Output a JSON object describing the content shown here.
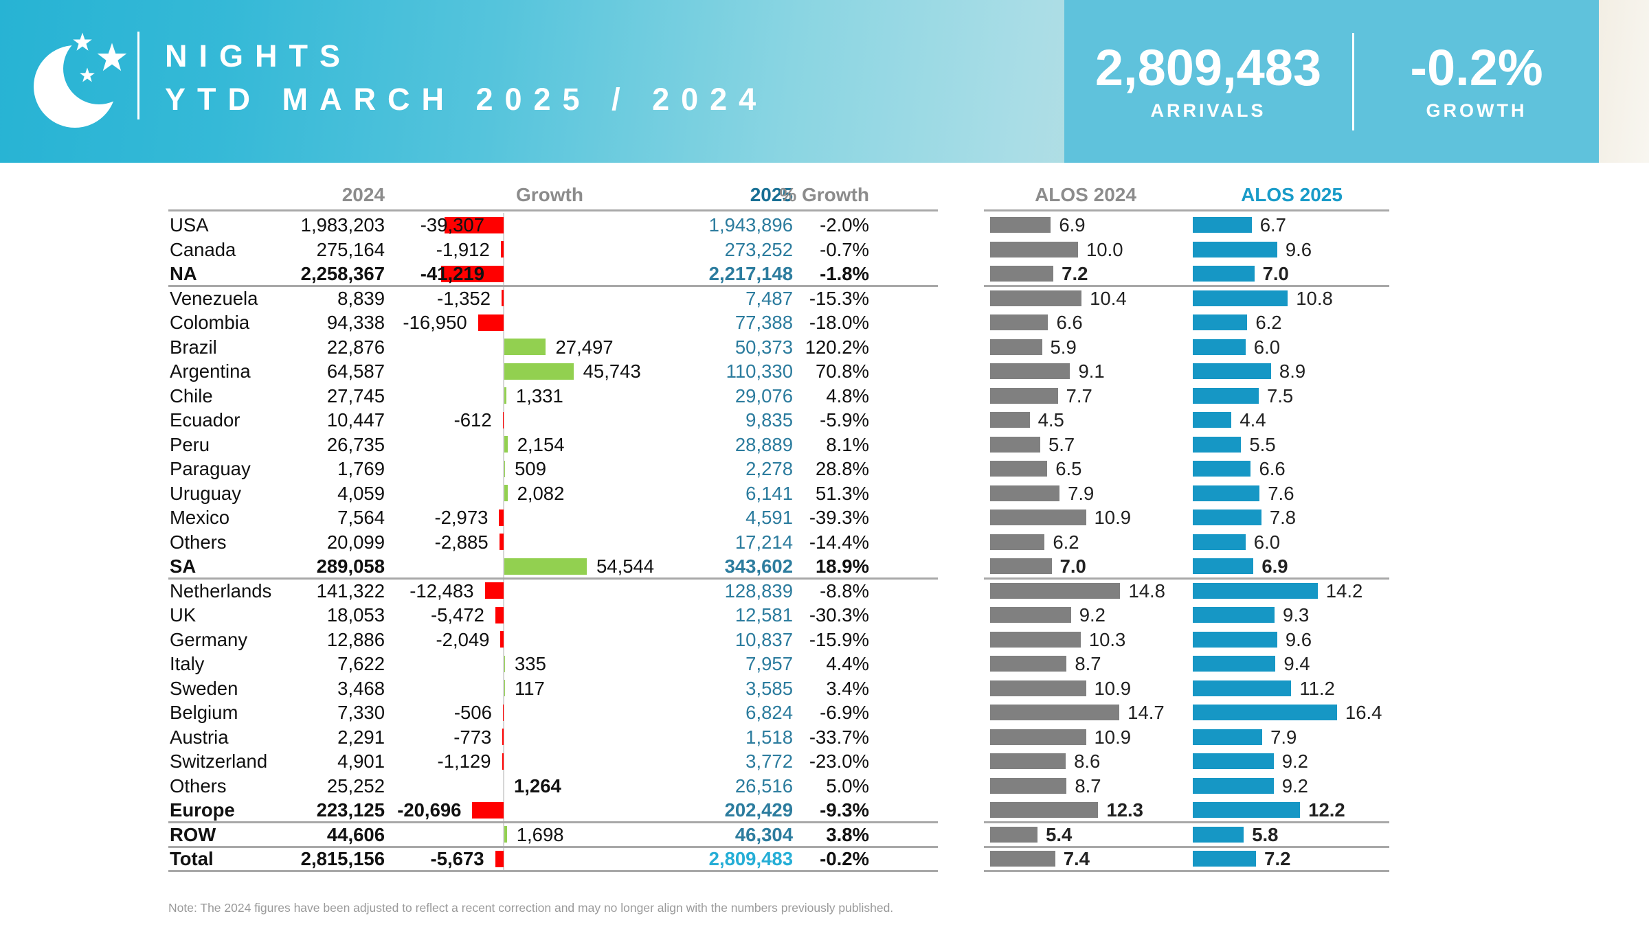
{
  "header": {
    "logo_icon": "crescent-moon-stars-icon",
    "title_line1": "NIGHTS",
    "title_line2": "YTD MARCH 2025 / 2024",
    "stats": {
      "arrivals_value": "2,809,483",
      "arrivals_label": "ARRIVALS",
      "growth_value": "-0.2%",
      "growth_label": "GROWTH"
    },
    "colors": {
      "band_teal": "#29b5d6",
      "panel_blue": "#5fc2dc"
    }
  },
  "table": {
    "headers": {
      "col_2024": "2024",
      "col_growth": "Growth",
      "col_2025": "2025",
      "col_pct": "% Growth",
      "col_alos_2024": "ALOS 2024",
      "col_alos_2025": "ALOS 2025"
    },
    "colors": {
      "negative_bar": "#ff0000",
      "positive_bar": "#92d050",
      "alos_2024_bar": "#808080",
      "alos_2025_bar": "#1697c5",
      "value_2025_text": "#2c7c9e",
      "total_2025_text": "#25aed6",
      "header_gray": "#8c8c8c",
      "border_gray": "#a8a8a8"
    },
    "rows": [
      {
        "name": "USA",
        "v2024": "1,983,203",
        "g": -39307,
        "gl": "-39,307",
        "v2025": "1,943,896",
        "pct": "-2.0%",
        "a24": 6.9,
        "a25": 6.7,
        "inside": true
      },
      {
        "name": "Canada",
        "v2024": "275,164",
        "g": -1912,
        "gl": "-1,912",
        "v2025": "273,252",
        "pct": "-0.7%",
        "a24": 10.0,
        "a25": 9.6
      },
      {
        "name": "NA",
        "v2024": "2,258,367",
        "g": -41219,
        "gl": "-41,219",
        "v2025": "2,217,148",
        "pct": "-1.8%",
        "a24": 7.2,
        "a25": 7.0,
        "bold": true,
        "glb": true,
        "inside": true,
        "end": true
      },
      {
        "name": "Venezuela",
        "v2024": "8,839",
        "g": -1352,
        "gl": "-1,352",
        "v2025": "7,487",
        "pct": "-15.3%",
        "a24": 10.4,
        "a25": 10.8
      },
      {
        "name": "Colombia",
        "v2024": "94,338",
        "g": -16950,
        "gl": "-16,950",
        "v2025": "77,388",
        "pct": "-18.0%",
        "a24": 6.6,
        "a25": 6.2
      },
      {
        "name": "Brazil",
        "v2024": "22,876",
        "g": 27497,
        "gl": "27,497",
        "v2025": "50,373",
        "pct": "120.2%",
        "a24": 5.9,
        "a25": 6.0
      },
      {
        "name": "Argentina",
        "v2024": "64,587",
        "g": 45743,
        "gl": "45,743",
        "v2025": "110,330",
        "pct": "70.8%",
        "a24": 9.1,
        "a25": 8.9
      },
      {
        "name": "Chile",
        "v2024": "27,745",
        "g": 1331,
        "gl": "1,331",
        "v2025": "29,076",
        "pct": "4.8%",
        "a24": 7.7,
        "a25": 7.5
      },
      {
        "name": "Ecuador",
        "v2024": "10,447",
        "g": -612,
        "gl": "-612",
        "v2025": "9,835",
        "pct": "-5.9%",
        "a24": 4.5,
        "a25": 4.4
      },
      {
        "name": "Peru",
        "v2024": "26,735",
        "g": 2154,
        "gl": "2,154",
        "v2025": "28,889",
        "pct": "8.1%",
        "a24": 5.7,
        "a25": 5.5
      },
      {
        "name": "Paraguay",
        "v2024": "1,769",
        "g": 509,
        "gl": "509",
        "v2025": "2,278",
        "pct": "28.8%",
        "a24": 6.5,
        "a25": 6.6
      },
      {
        "name": "Uruguay",
        "v2024": "4,059",
        "g": 2082,
        "gl": "2,082",
        "v2025": "6,141",
        "pct": "51.3%",
        "a24": 7.9,
        "a25": 7.6
      },
      {
        "name": "Mexico",
        "v2024": "7,564",
        "g": -2973,
        "gl": "-2,973",
        "v2025": "4,591",
        "pct": "-39.3%",
        "a24": 10.9,
        "a25": 7.8
      },
      {
        "name": "Others",
        "v2024": "20,099",
        "g": -2885,
        "gl": "-2,885",
        "v2025": "17,214",
        "pct": "-14.4%",
        "a24": 6.2,
        "a25": 6.0
      },
      {
        "name": "SA",
        "v2024": "289,058",
        "g": 54544,
        "gl": "54,544",
        "v2025": "343,602",
        "pct": "18.9%",
        "a24": 7.0,
        "a25": 6.9,
        "bold": true,
        "end": true
      },
      {
        "name": "Netherlands",
        "v2024": "141,322",
        "g": -12483,
        "gl": "-12,483",
        "v2025": "128,839",
        "pct": "-8.8%",
        "a24": 14.8,
        "a25": 14.2
      },
      {
        "name": "UK",
        "v2024": "18,053",
        "g": -5472,
        "gl": "-5,472",
        "v2025": "12,581",
        "pct": "-30.3%",
        "a24": 9.2,
        "a25": 9.3
      },
      {
        "name": "Germany",
        "v2024": "12,886",
        "g": -2049,
        "gl": "-2,049",
        "v2025": "10,837",
        "pct": "-15.9%",
        "a24": 10.3,
        "a25": 9.6
      },
      {
        "name": "Italy",
        "v2024": "7,622",
        "g": 335,
        "gl": "335",
        "v2025": "7,957",
        "pct": "4.4%",
        "a24": 8.7,
        "a25": 9.4
      },
      {
        "name": "Sweden",
        "v2024": "3,468",
        "g": 117,
        "gl": "117",
        "v2025": "3,585",
        "pct": "3.4%",
        "a24": 10.9,
        "a25": 11.2
      },
      {
        "name": "Belgium",
        "v2024": "7,330",
        "g": -506,
        "gl": "-506",
        "v2025": "6,824",
        "pct": "-6.9%",
        "a24": 14.7,
        "a25": 16.4
      },
      {
        "name": "Austria",
        "v2024": "2,291",
        "g": -773,
        "gl": "-773",
        "v2025": "1,518",
        "pct": "-33.7%",
        "a24": 10.9,
        "a25": 7.9
      },
      {
        "name": "Switzerland",
        "v2024": "4,901",
        "g": -1129,
        "gl": "-1,129",
        "v2025": "3,772",
        "pct": "-23.0%",
        "a24": 8.6,
        "a25": 9.2
      },
      {
        "name": "Others",
        "v2024": "25,252",
        "g": 1264,
        "gl": "1,264",
        "v2025": "26,516",
        "pct": "5.0%",
        "a24": 8.7,
        "a25": 9.2,
        "glb": true,
        "nobar": true
      },
      {
        "name": "Europe",
        "v2024": "223,125",
        "g": -20696,
        "gl": "-20,696",
        "v2025": "202,429",
        "pct": "-9.3%",
        "a24": 12.3,
        "a25": 12.2,
        "bold": true,
        "glb": true,
        "end": true
      },
      {
        "name": "ROW",
        "v2024": "44,606",
        "g": 1698,
        "gl": "1,698",
        "v2025": "46,304",
        "pct": "3.8%",
        "a24": 5.4,
        "a25": 5.8,
        "bold": true,
        "end": true
      },
      {
        "name": "Total",
        "v2024": "2,815,156",
        "g": -5673,
        "gl": "-5,673",
        "v2025": "2,809,483",
        "pct": "-0.2%",
        "a24": 7.4,
        "a25": 7.2,
        "bold": true,
        "glb": true,
        "end": true,
        "total": true
      }
    ]
  },
  "note": "Note: The 2024 figures have been adjusted to reflect a recent correction and may no longer align with the numbers previously published.",
  "chart_data": {
    "type": "bar",
    "title": "NIGHTS YTD MARCH 2025 / 2024",
    "subtitle": "Arrivals 2,809,483 | Growth -0.2%",
    "categories": [
      "USA",
      "Canada",
      "NA",
      "Venezuela",
      "Colombia",
      "Brazil",
      "Argentina",
      "Chile",
      "Ecuador",
      "Peru",
      "Paraguay",
      "Uruguay",
      "Mexico",
      "Others (SA)",
      "SA",
      "Netherlands",
      "UK",
      "Germany",
      "Italy",
      "Sweden",
      "Belgium",
      "Austria",
      "Switzerland",
      "Others (Europe)",
      "Europe",
      "ROW",
      "Total"
    ],
    "series": [
      {
        "name": "2024",
        "values": [
          1983203,
          275164,
          2258367,
          8839,
          94338,
          22876,
          64587,
          27745,
          10447,
          26735,
          1769,
          4059,
          7564,
          20099,
          289058,
          141322,
          18053,
          12886,
          7622,
          3468,
          7330,
          2291,
          4901,
          25252,
          223125,
          44606,
          2815156
        ]
      },
      {
        "name": "Growth",
        "values": [
          -39307,
          -1912,
          -41219,
          -1352,
          -16950,
          27497,
          45743,
          1331,
          -612,
          2154,
          509,
          2082,
          -2973,
          -2885,
          54544,
          -12483,
          -5472,
          -2049,
          335,
          117,
          -506,
          -773,
          -1129,
          1264,
          -20696,
          1698,
          -5673
        ]
      },
      {
        "name": "2025",
        "values": [
          1943896,
          273252,
          2217148,
          7487,
          77388,
          50373,
          110330,
          29076,
          9835,
          28889,
          2278,
          6141,
          4591,
          17214,
          343602,
          128839,
          12581,
          10837,
          7957,
          3585,
          6824,
          1518,
          3772,
          26516,
          202429,
          46304,
          2809483
        ]
      },
      {
        "name": "% Growth",
        "values": [
          -2.0,
          -0.7,
          -1.8,
          -15.3,
          -18.0,
          120.2,
          70.8,
          4.8,
          -5.9,
          8.1,
          28.8,
          51.3,
          -39.3,
          -14.4,
          18.9,
          -8.8,
          -30.3,
          -15.9,
          4.4,
          3.4,
          -6.9,
          -33.7,
          -23.0,
          5.0,
          -9.3,
          3.8,
          -0.2
        ]
      },
      {
        "name": "ALOS 2024",
        "values": [
          6.9,
          10.0,
          7.2,
          10.4,
          6.6,
          5.9,
          9.1,
          7.7,
          4.5,
          5.7,
          6.5,
          7.9,
          10.9,
          6.2,
          7.0,
          14.8,
          9.2,
          10.3,
          8.7,
          10.9,
          14.7,
          10.9,
          8.6,
          8.7,
          12.3,
          5.4,
          7.4
        ]
      },
      {
        "name": "ALOS 2025",
        "values": [
          6.7,
          9.6,
          7.0,
          10.8,
          6.2,
          6.0,
          8.9,
          7.5,
          4.4,
          5.5,
          6.6,
          7.6,
          7.8,
          6.0,
          6.9,
          14.2,
          9.3,
          9.6,
          9.4,
          11.2,
          16.4,
          7.9,
          9.2,
          9.2,
          12.2,
          5.8,
          7.2
        ]
      }
    ],
    "layout": {
      "growth_bars_colors": {
        "negative": "#ff0000",
        "positive": "#92d050"
      },
      "alos_2024_color": "#808080",
      "alos_2025_color": "#1697c5",
      "legend_position": "column headers",
      "grid": false
    }
  }
}
